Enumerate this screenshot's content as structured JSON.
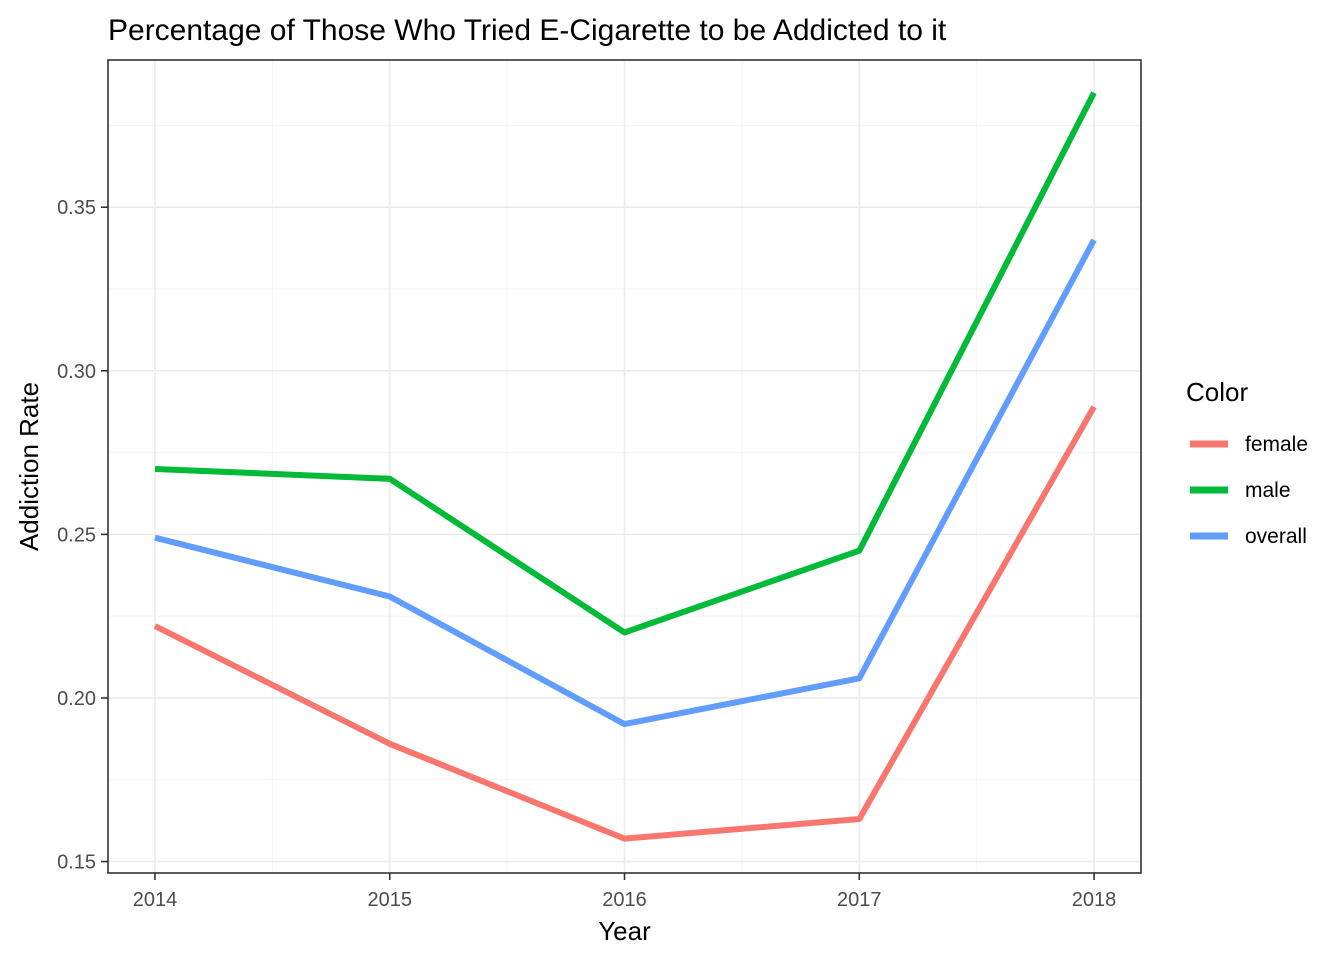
{
  "chart_data": {
    "type": "line",
    "title": "Percentage of Those Who Tried E-Cigarette to be Addicted to it",
    "xlabel": "Year",
    "ylabel": "Addiction Rate",
    "x": [
      2014,
      2015,
      2016,
      2017,
      2018
    ],
    "x_tick_labels": [
      "2014",
      "2015",
      "2016",
      "2017",
      "2018"
    ],
    "y_ticks": [
      0.15,
      0.2,
      0.25,
      0.3,
      0.35
    ],
    "y_tick_labels": [
      "0.15",
      "0.20",
      "0.25",
      "0.30",
      "0.35"
    ],
    "xlim": [
      2013.8,
      2018.2
    ],
    "ylim": [
      0.1465,
      0.395
    ],
    "grid": true,
    "legend": {
      "title": "Color",
      "position": "right"
    },
    "series": [
      {
        "name": "female",
        "color": "#F8766D",
        "values": [
          0.222,
          0.186,
          0.157,
          0.163,
          0.289
        ]
      },
      {
        "name": "male",
        "color": "#00BA38",
        "values": [
          0.27,
          0.267,
          0.22,
          0.245,
          0.385
        ]
      },
      {
        "name": "overall",
        "color": "#619CFF",
        "values": [
          0.249,
          0.231,
          0.192,
          0.206,
          0.34
        ]
      }
    ]
  }
}
